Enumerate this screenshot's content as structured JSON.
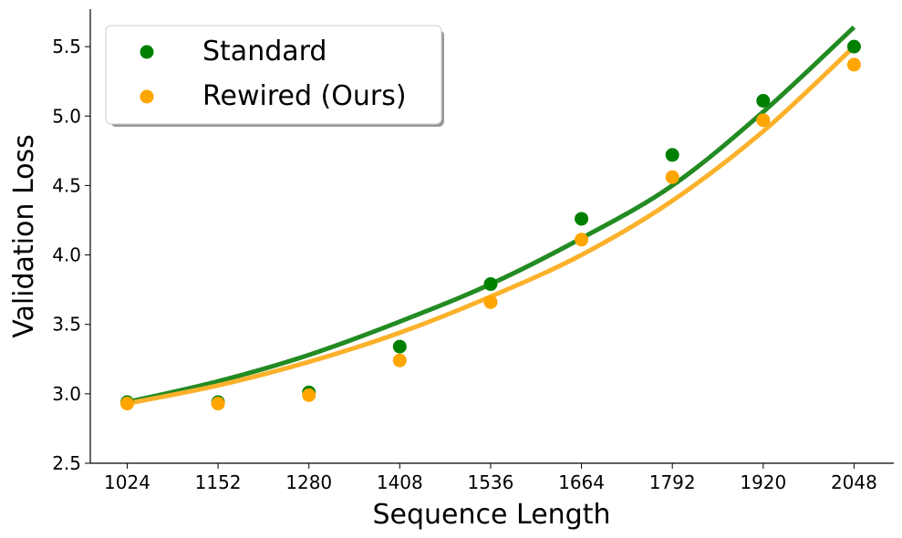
{
  "chart_data": {
    "type": "scatter",
    "xlabel": "Sequence Length",
    "ylabel": "Validation Loss",
    "x": [
      1024,
      1152,
      1280,
      1408,
      1536,
      1664,
      1792,
      1920,
      2048
    ],
    "xticks": [
      "1024",
      "1152",
      "1280",
      "1408",
      "1536",
      "1664",
      "1792",
      "1920",
      "2048"
    ],
    "yticks": [
      "2.5",
      "3.0",
      "3.5",
      "4.0",
      "4.5",
      "5.0",
      "5.5"
    ],
    "xlim": [
      972,
      2104
    ],
    "ylim": [
      2.5,
      5.77
    ],
    "grid": false,
    "legend_position": "top-left",
    "series": [
      {
        "name": "Standard",
        "color": "#008000",
        "fit_color": "#228B22",
        "values": [
          2.94,
          2.94,
          3.01,
          3.34,
          3.79,
          4.26,
          4.72,
          5.11,
          5.5
        ],
        "fit": [
          2.94,
          3.09,
          3.28,
          3.52,
          3.79,
          4.12,
          4.5,
          5.03,
          5.64
        ]
      },
      {
        "name": "Rewired (Ours)",
        "color": "#FFA500",
        "fit_color": "#FBB12B",
        "values": [
          2.93,
          2.93,
          2.99,
          3.24,
          3.66,
          4.11,
          4.56,
          4.97,
          5.37
        ],
        "fit": [
          2.93,
          3.06,
          3.23,
          3.44,
          3.7,
          4.0,
          4.39,
          4.89,
          5.5
        ]
      }
    ]
  }
}
